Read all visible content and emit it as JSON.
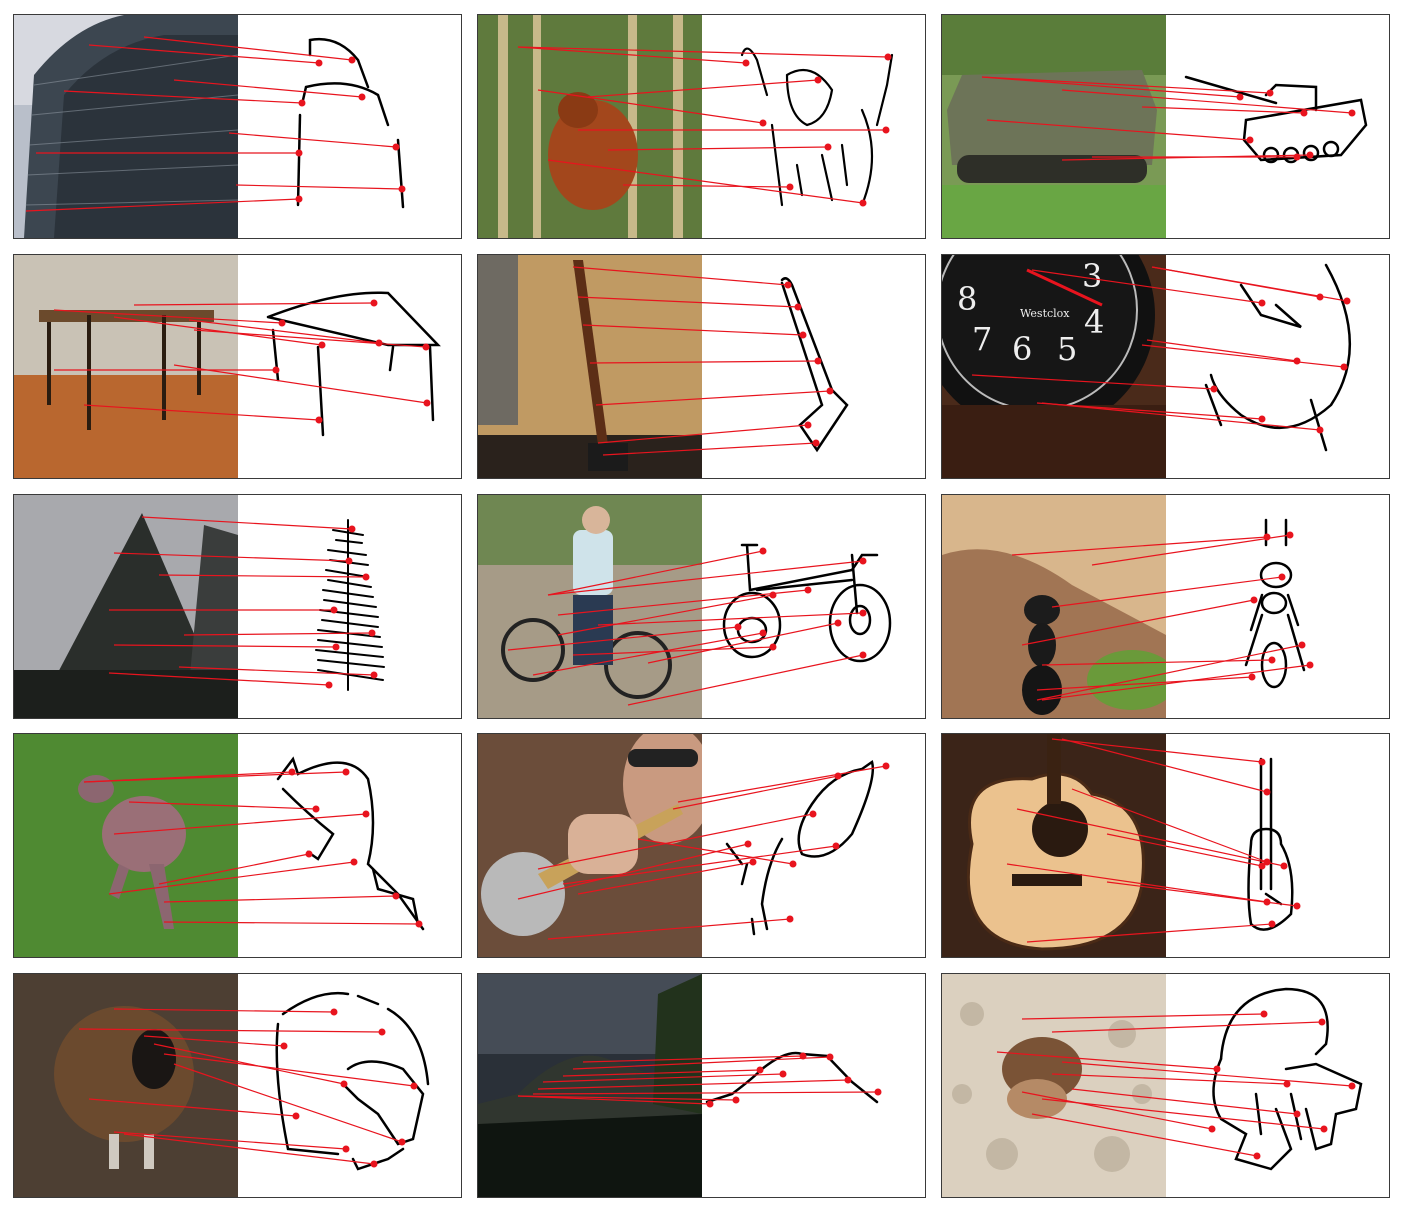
{
  "figure": {
    "rows": 5,
    "cols": 3,
    "panels": [
      {
        "subject": "building"
      },
      {
        "subject": "orangutan"
      },
      {
        "subject": "tank"
      },
      {
        "subject": "table"
      },
      {
        "subject": "axe"
      },
      {
        "subject": "alarm clock",
        "photo_text": "Westclox"
      },
      {
        "subject": "tree"
      },
      {
        "subject": "bicycle"
      },
      {
        "subject": "ant"
      },
      {
        "subject": "kangaroo"
      },
      {
        "subject": "trumpet"
      },
      {
        "subject": "guitar"
      },
      {
        "subject": "sheep"
      },
      {
        "subject": "volcano"
      },
      {
        "subject": "hermit crab"
      }
    ]
  },
  "colors": {
    "correspondence_line": "#e8141e",
    "keypoint": "#e8141e",
    "sketch_stroke": "#000000",
    "panel_border": "#3a3a3a"
  }
}
